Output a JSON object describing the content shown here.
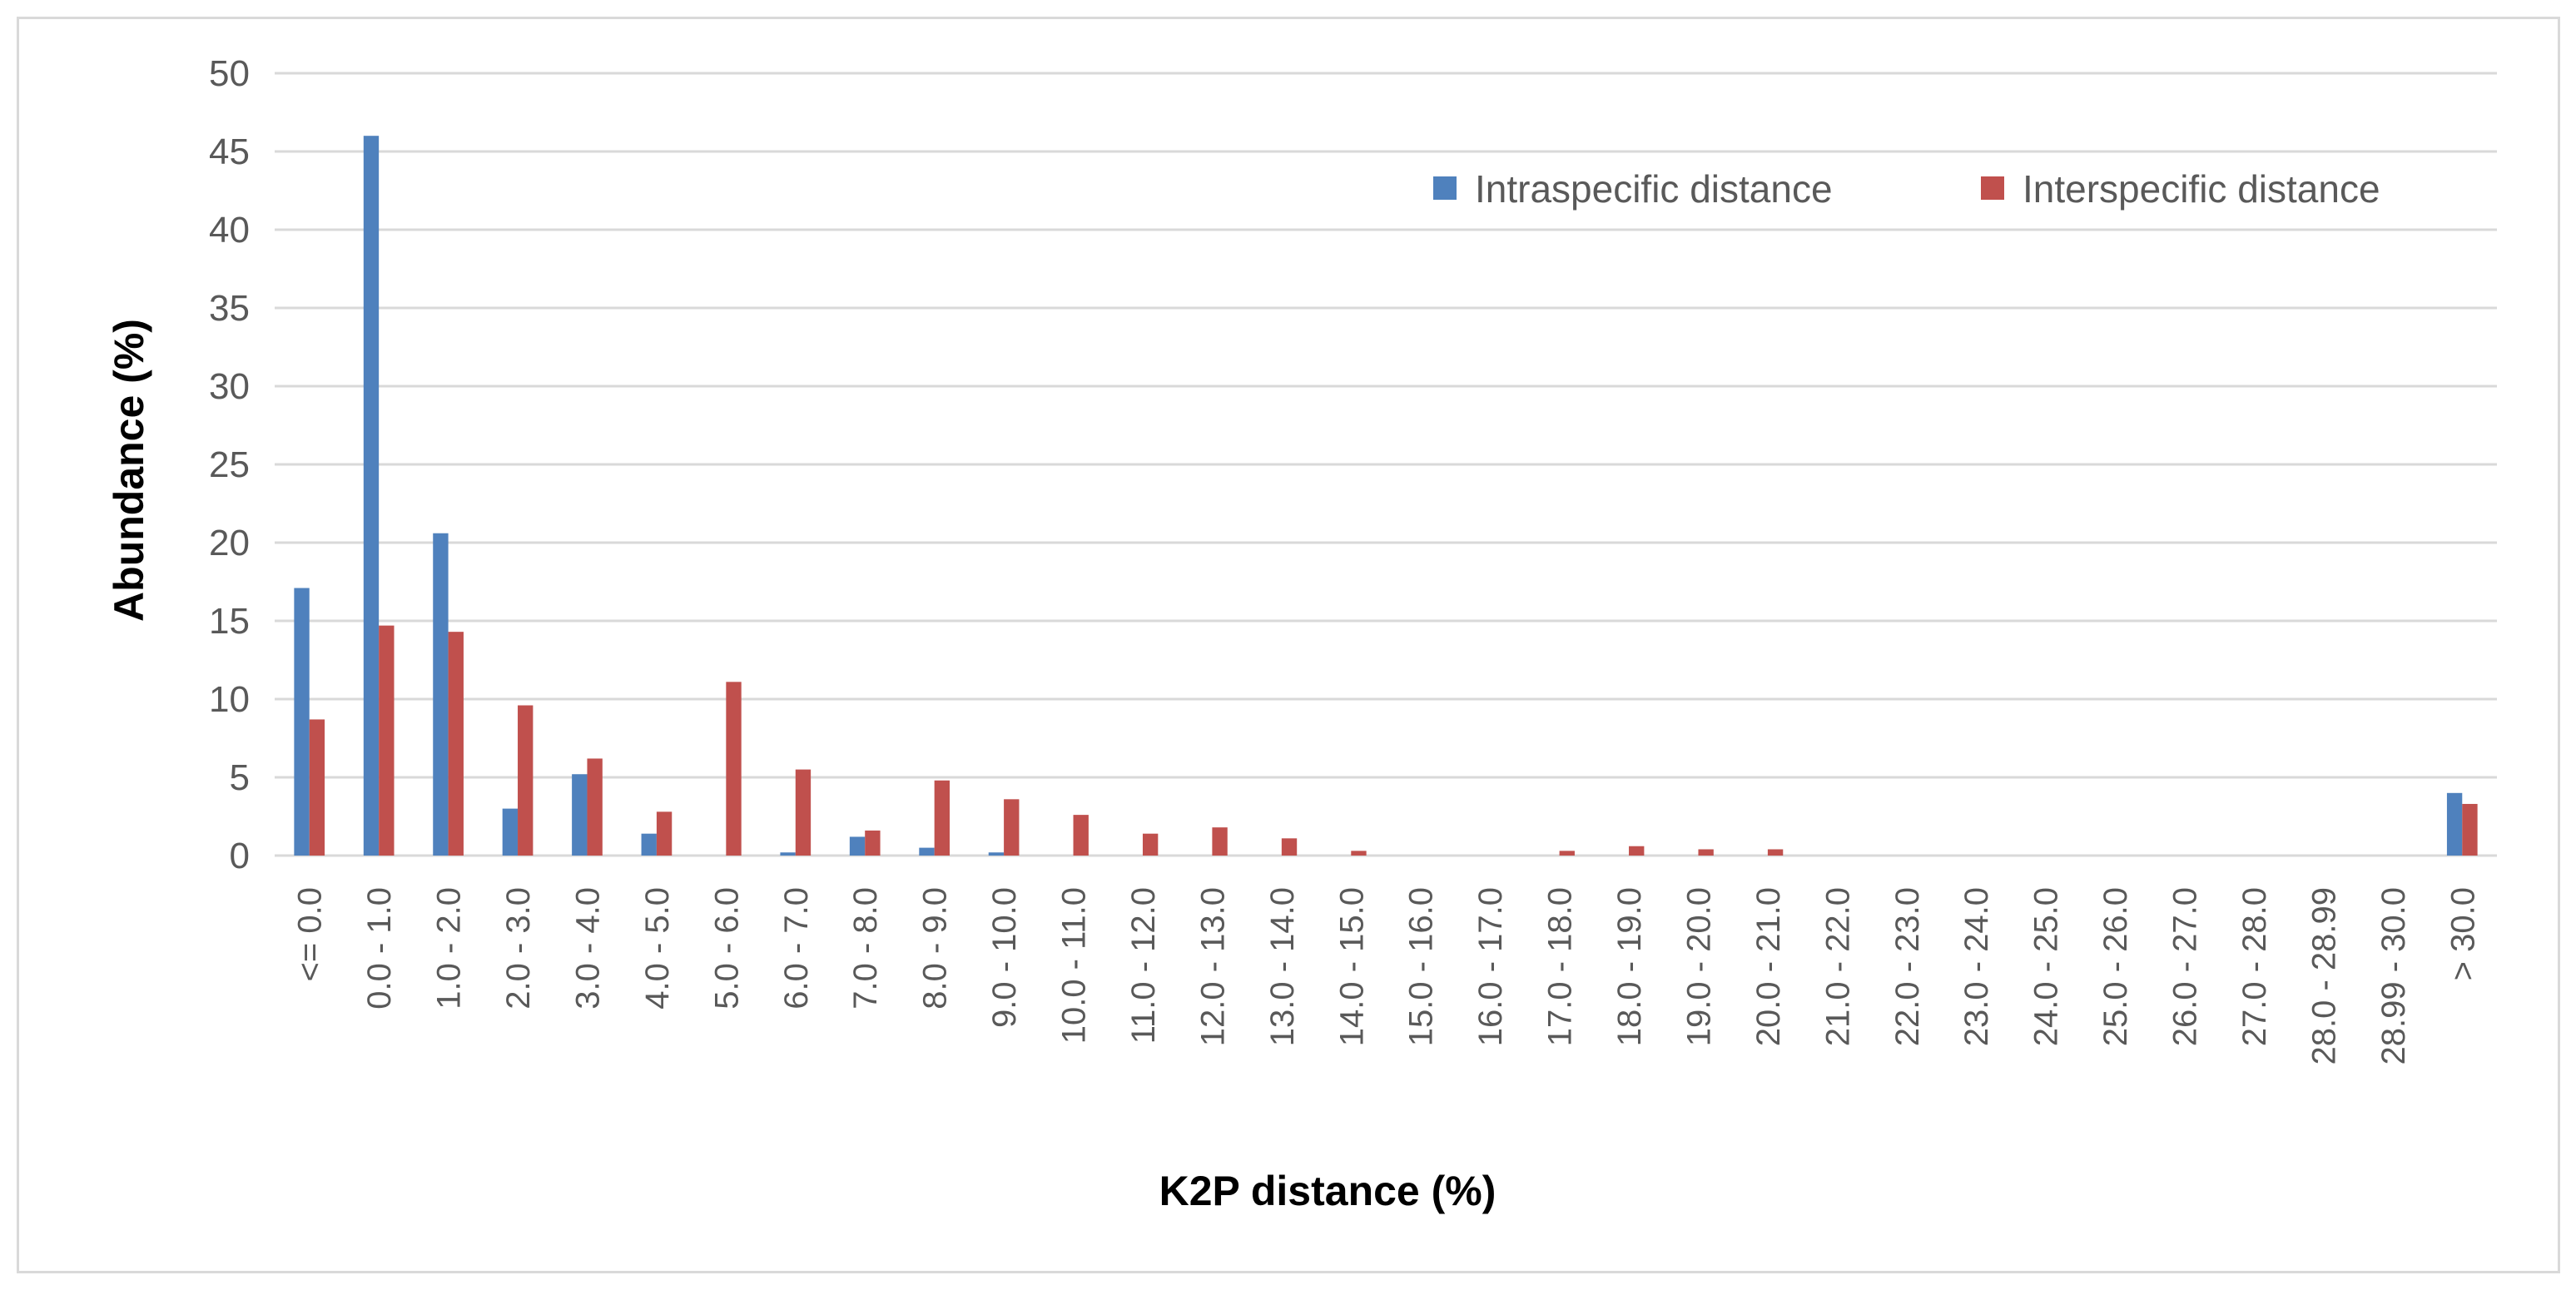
{
  "chart_data": {
    "type": "bar",
    "title": "",
    "xlabel": "K2P distance (%)",
    "ylabel": "Abundance (%)",
    "ylim": [
      0,
      50
    ],
    "yticks": [
      "0",
      "5",
      "10",
      "15",
      "20",
      "25",
      "30",
      "35",
      "40",
      "45",
      "50"
    ],
    "grid": true,
    "legend_position": "top-right",
    "categories": [
      "<= 0.0",
      "0.0 - 1.0",
      "1.0 - 2.0",
      "2.0 - 3.0",
      "3.0 - 4.0",
      "4.0 - 5.0",
      "5.0 - 6.0",
      "6.0 - 7.0",
      "7.0 - 8.0",
      "8.0 - 9.0",
      "9.0 - 10.0",
      "10.0 - 11.0",
      "11.0 - 12.0",
      "12.0 - 13.0",
      "13.0 - 14.0",
      "14.0 - 15.0",
      "15.0 - 16.0",
      "16.0 - 17.0",
      "17.0 - 18.0",
      "18.0 - 19.0",
      "19.0 - 20.0",
      "20.0 - 21.0",
      "21.0 - 22.0",
      "22.0 - 23.0",
      "23.0 - 24.0",
      "24.0 - 25.0",
      "25.0 - 26.0",
      "26.0 - 27.0",
      "27.0 - 28.0",
      "28.0 - 28.99",
      "28.99 - 30.0",
      "> 30.0"
    ],
    "series": [
      {
        "name": "Intraspecific distance",
        "color": "#4f81bd",
        "values": [
          17.1,
          46.0,
          20.6,
          3.0,
          5.2,
          1.4,
          0,
          0.2,
          1.2,
          0.5,
          0.2,
          0,
          0,
          0,
          0,
          0,
          0,
          0,
          0,
          0,
          0,
          0,
          0,
          0,
          0,
          0,
          0,
          0,
          0,
          0,
          0,
          4.0
        ]
      },
      {
        "name": "Interspecific distance",
        "color": "#c0504d",
        "values": [
          8.7,
          14.7,
          14.3,
          9.6,
          6.2,
          2.8,
          11.1,
          5.5,
          1.6,
          4.8,
          3.6,
          2.6,
          1.4,
          1.8,
          1.1,
          0.3,
          0,
          0,
          0.3,
          0.6,
          0.4,
          0.4,
          0,
          0,
          0,
          0,
          0,
          0,
          0,
          0,
          0,
          3.3
        ]
      }
    ]
  }
}
